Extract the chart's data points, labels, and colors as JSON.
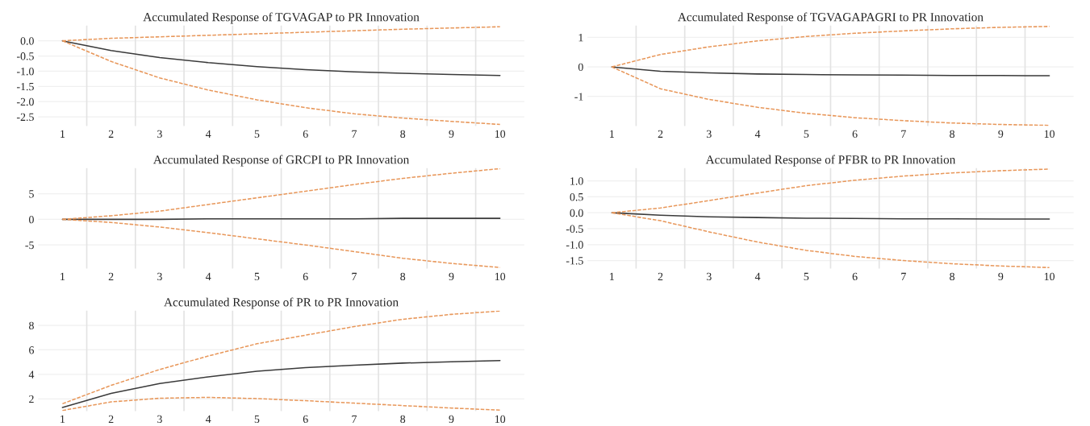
{
  "chart_data": [
    {
      "type": "line",
      "title": "Accumulated Response of TGVAGAP to PR Innovation",
      "categories": [
        "1",
        "2",
        "3",
        "4",
        "5",
        "6",
        "7",
        "8",
        "9",
        "10"
      ],
      "ylim": [
        -2.8,
        0.5
      ],
      "yticks": [
        {
          "value": 0.0,
          "label": "0.0"
        },
        {
          "value": -0.5,
          "label": "-0.5"
        },
        {
          "value": -1.0,
          "label": "-1.0"
        },
        {
          "value": -1.5,
          "label": "-1.5"
        },
        {
          "value": -2.0,
          "label": "-2.0"
        },
        {
          "value": -2.5,
          "label": "-2.5"
        }
      ],
      "grid": true,
      "series": [
        {
          "color": "#3a3a3a",
          "line_style": "solid",
          "values": [
            0,
            -0.32,
            -0.55,
            -0.72,
            -0.85,
            -0.95,
            -1.02,
            -1.07,
            -1.11,
            -1.14
          ]
        },
        {
          "color": "#e8975a",
          "line_style": "dashed",
          "values": [
            0,
            0.08,
            0.13,
            0.18,
            0.23,
            0.28,
            0.33,
            0.38,
            0.42,
            0.46
          ]
        },
        {
          "color": "#e8975a",
          "line_style": "dashed",
          "values": [
            0,
            -0.68,
            -1.22,
            -1.62,
            -1.94,
            -2.2,
            -2.4,
            -2.54,
            -2.65,
            -2.75
          ]
        }
      ]
    },
    {
      "type": "line",
      "title": "Accumulated Response of TGVAGAPAGRI to PR Innovation",
      "categories": [
        "1",
        "2",
        "3",
        "4",
        "5",
        "6",
        "7",
        "8",
        "9",
        "10"
      ],
      "ylim": [
        -2.0,
        1.4
      ],
      "yticks": [
        1,
        0,
        -1
      ],
      "grid": true,
      "series": [
        {
          "color": "#3a3a3a",
          "line_style": "solid",
          "values": [
            0,
            -0.15,
            -0.2,
            -0.24,
            -0.26,
            -0.27,
            -0.28,
            -0.29,
            -0.29,
            -0.3
          ]
        },
        {
          "color": "#e8975a",
          "line_style": "dashed",
          "values": [
            0,
            0.42,
            0.68,
            0.88,
            1.03,
            1.14,
            1.22,
            1.29,
            1.34,
            1.37
          ]
        },
        {
          "color": "#e8975a",
          "line_style": "dashed",
          "values": [
            0,
            -0.74,
            -1.1,
            -1.37,
            -1.57,
            -1.72,
            -1.82,
            -1.9,
            -1.95,
            -1.98
          ]
        }
      ]
    },
    {
      "type": "line",
      "title": "Accumulated Response of GRCPI to PR Innovation",
      "categories": [
        "1",
        "2",
        "3",
        "4",
        "5",
        "6",
        "7",
        "8",
        "9",
        "10"
      ],
      "ylim": [
        -9.6,
        10
      ],
      "yticks": [
        5,
        0,
        -5
      ],
      "grid": true,
      "series": [
        {
          "color": "#3a3a3a",
          "line_style": "solid",
          "values": [
            0,
            0,
            0,
            0.1,
            0.1,
            0.1,
            0.1,
            0.2,
            0.2,
            0.2
          ]
        },
        {
          "color": "#e8975a",
          "line_style": "dashed",
          "values": [
            0,
            0.7,
            1.6,
            2.9,
            4.2,
            5.5,
            6.8,
            8.0,
            9.0,
            9.9
          ]
        },
        {
          "color": "#e8975a",
          "line_style": "dashed",
          "values": [
            0,
            -0.6,
            -1.5,
            -2.6,
            -3.8,
            -5.0,
            -6.3,
            -7.6,
            -8.6,
            -9.4
          ]
        }
      ]
    },
    {
      "type": "line",
      "title": "Accumulated Response of PFBR to PR Innovation",
      "categories": [
        "1",
        "2",
        "3",
        "4",
        "5",
        "6",
        "7",
        "8",
        "9",
        "10"
      ],
      "ylim": [
        -1.75,
        1.4
      ],
      "yticks": [
        {
          "value": 1.0,
          "label": "1.0"
        },
        {
          "value": 0.5,
          "label": "0.5"
        },
        {
          "value": 0.0,
          "label": "0.0"
        },
        {
          "value": -0.5,
          "label": "-0.5"
        },
        {
          "value": -1.0,
          "label": "-1.0"
        },
        {
          "value": -1.5,
          "label": "-1.5"
        }
      ],
      "grid": true,
      "series": [
        {
          "color": "#3a3a3a",
          "line_style": "solid",
          "values": [
            0,
            -0.08,
            -0.13,
            -0.15,
            -0.17,
            -0.18,
            -0.19,
            -0.19,
            -0.2,
            -0.2
          ]
        },
        {
          "color": "#e8975a",
          "line_style": "dashed",
          "values": [
            0,
            0.15,
            0.38,
            0.62,
            0.85,
            1.02,
            1.15,
            1.25,
            1.32,
            1.37
          ]
        },
        {
          "color": "#e8975a",
          "line_style": "dashed",
          "values": [
            0,
            -0.25,
            -0.6,
            -0.92,
            -1.18,
            -1.37,
            -1.5,
            -1.6,
            -1.67,
            -1.72
          ]
        }
      ]
    },
    {
      "type": "line",
      "title": "Accumulated Response of PR to PR Innovation",
      "categories": [
        "1",
        "2",
        "3",
        "4",
        "5",
        "6",
        "7",
        "8",
        "9",
        "10"
      ],
      "ylim": [
        1.0,
        9.2
      ],
      "yticks": [
        8,
        6,
        4,
        2
      ],
      "grid": true,
      "series": [
        {
          "color": "#3a3a3a",
          "line_style": "solid",
          "values": [
            1.3,
            2.45,
            3.25,
            3.8,
            4.25,
            4.55,
            4.75,
            4.92,
            5.03,
            5.12
          ]
        },
        {
          "color": "#e8975a",
          "line_style": "dashed",
          "values": [
            1.6,
            3.1,
            4.4,
            5.5,
            6.5,
            7.2,
            7.9,
            8.5,
            8.9,
            9.17
          ]
        },
        {
          "color": "#e8975a",
          "line_style": "dashed",
          "values": [
            1.05,
            1.75,
            2.05,
            2.12,
            2.02,
            1.85,
            1.65,
            1.45,
            1.25,
            1.08
          ]
        }
      ]
    }
  ]
}
